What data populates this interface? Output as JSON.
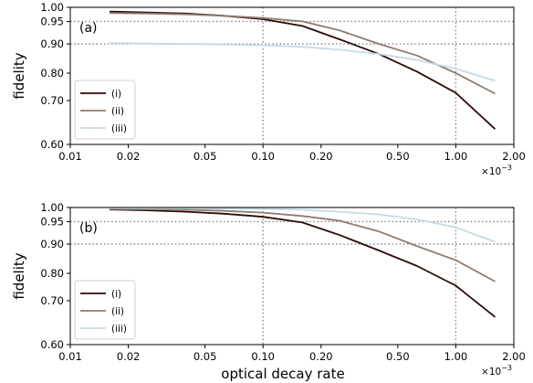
{
  "chart_data": [
    {
      "type": "line",
      "panel_label": "(a)",
      "xlabel": "",
      "ylabel": "fidelity",
      "xscale": "log",
      "yscale": "custom (infidelity-log)",
      "xlim": [
        0.01,
        2.0
      ],
      "ylim": [
        0.6,
        1.0
      ],
      "x_ticks": [
        "0.01",
        "0.02",
        "0.05",
        "0.10",
        "0.20",
        "0.50",
        "1.00",
        "2.00"
      ],
      "y_ticks": [
        "0.60",
        "0.70",
        "0.80",
        "0.90",
        "0.95",
        "1.00"
      ],
      "x_multiplier": "×10",
      "x_multiplier_exp": "−3",
      "grid": "dotted lines at fidelity 0.90, 0.95, 1.00 and decay rate 0.10, 1.00",
      "legend_position": "lower-left",
      "colors": {
        "(i)": "#2b0b07",
        "(ii)": "#8e7b6f",
        "(iii)": "#c5dae6"
      },
      "x": [
        0.016,
        0.025,
        0.04,
        0.063,
        0.1,
        0.16,
        0.25,
        0.4,
        0.63,
        1.0,
        1.6
      ],
      "series": [
        {
          "name": "(i)",
          "values": [
            0.985,
            0.982,
            0.978,
            0.97,
            0.958,
            0.94,
            0.91,
            0.865,
            0.805,
            0.728,
            0.635
          ]
        },
        {
          "name": "(ii)",
          "values": [
            0.98,
            0.978,
            0.975,
            0.97,
            0.962,
            0.95,
            0.93,
            0.9,
            0.86,
            0.8,
            0.725
          ]
        },
        {
          "name": "(iii)",
          "values": [
            0.902,
            0.901,
            0.9,
            0.898,
            0.895,
            0.89,
            0.88,
            0.865,
            0.845,
            0.815,
            0.772
          ]
        }
      ]
    },
    {
      "type": "line",
      "panel_label": "(b)",
      "xlabel": "optical decay rate",
      "ylabel": "fidelity",
      "xscale": "log",
      "yscale": "custom (infidelity-log)",
      "xlim": [
        0.01,
        2.0
      ],
      "ylim": [
        0.6,
        1.0
      ],
      "x_ticks": [
        "0.01",
        "0.02",
        "0.05",
        "0.10",
        "0.20",
        "0.50",
        "1.00",
        "2.00"
      ],
      "y_ticks": [
        "0.60",
        "0.70",
        "0.80",
        "0.90",
        "0.95",
        "1.00"
      ],
      "x_multiplier": "×10",
      "x_multiplier_exp": "−3",
      "grid": "dotted lines at fidelity 0.90, 0.95, 1.00 and decay rate 0.10, 1.00",
      "legend_position": "lower-left",
      "colors": {
        "(i)": "#2b0b07",
        "(ii)": "#8e7b6f",
        "(iii)": "#c5dae6"
      },
      "x": [
        0.016,
        0.025,
        0.04,
        0.063,
        0.1,
        0.16,
        0.25,
        0.4,
        0.63,
        1.0,
        1.6
      ],
      "series": [
        {
          "name": "(i)",
          "values": [
            0.993,
            0.99,
            0.985,
            0.978,
            0.967,
            0.948,
            0.92,
            0.878,
            0.825,
            0.755,
            0.663
          ]
        },
        {
          "name": "(ii)",
          "values": [
            0.995,
            0.994,
            0.992,
            0.988,
            0.982,
            0.97,
            0.953,
            0.928,
            0.893,
            0.845,
            0.77
          ]
        },
        {
          "name": "(iii)",
          "values": [
            0.997,
            0.997,
            0.997,
            0.996,
            0.995,
            0.992,
            0.985,
            0.975,
            0.958,
            0.937,
            0.905
          ]
        }
      ]
    }
  ]
}
